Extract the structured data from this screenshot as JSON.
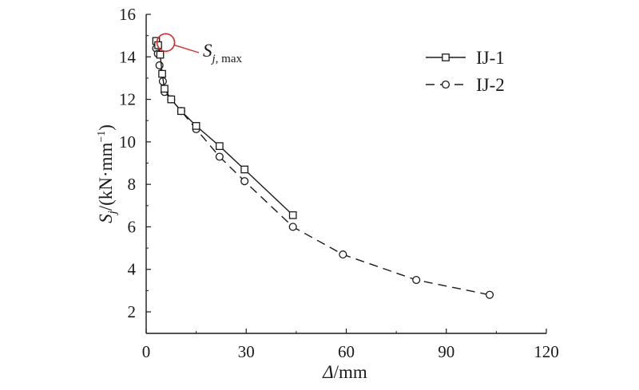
{
  "chart_data": {
    "type": "line",
    "title": "",
    "xlabel": {
      "symbol": "Δ",
      "unit": "/mm"
    },
    "ylabel": {
      "symbol": "S",
      "sub": "j",
      "unit_open": "/(kN·mm",
      "sup": "−1",
      "unit_close": ")"
    },
    "xlim": [
      0,
      120
    ],
    "ylim": [
      1,
      16
    ],
    "xticks": [
      0,
      30,
      60,
      90,
      120
    ],
    "yticks": [
      2,
      4,
      6,
      8,
      10,
      12,
      14,
      16
    ],
    "grid": false,
    "legend_position": "top-right",
    "series": [
      {
        "name": "IJ-1",
        "marker": "square",
        "line_style": "solid",
        "points": [
          [
            3.0,
            14.75
          ],
          [
            3.6,
            14.55
          ],
          [
            4.2,
            14.1
          ],
          [
            4.8,
            13.2
          ],
          [
            5.5,
            12.5
          ],
          [
            7.5,
            12.0
          ],
          [
            10.5,
            11.45
          ],
          [
            15.0,
            10.75
          ],
          [
            22.0,
            9.8
          ],
          [
            29.5,
            8.7
          ],
          [
            44.0,
            6.55
          ]
        ]
      },
      {
        "name": "IJ-2",
        "marker": "circle",
        "line_style": "dashed",
        "points": [
          [
            3.0,
            14.4
          ],
          [
            3.5,
            14.15
          ],
          [
            4.0,
            13.6
          ],
          [
            5.0,
            12.85
          ],
          [
            5.5,
            12.35
          ],
          [
            7.5,
            12.0
          ],
          [
            10.5,
            11.45
          ],
          [
            15.0,
            10.6
          ],
          [
            22.0,
            9.3
          ],
          [
            29.5,
            8.15
          ],
          [
            44.0,
            6.0
          ],
          [
            59.0,
            4.7
          ],
          [
            81.0,
            3.5
          ],
          [
            103.0,
            2.8
          ]
        ]
      }
    ],
    "annotation": {
      "symbol": "S",
      "sub": "j",
      "sub_text": ", max",
      "target": [
        3.0,
        14.6
      ],
      "color": "#d42a2a"
    },
    "colors": {
      "axis": "#1a1a1a",
      "line": "#1a1a1a",
      "highlight": "#d42a2a"
    }
  }
}
